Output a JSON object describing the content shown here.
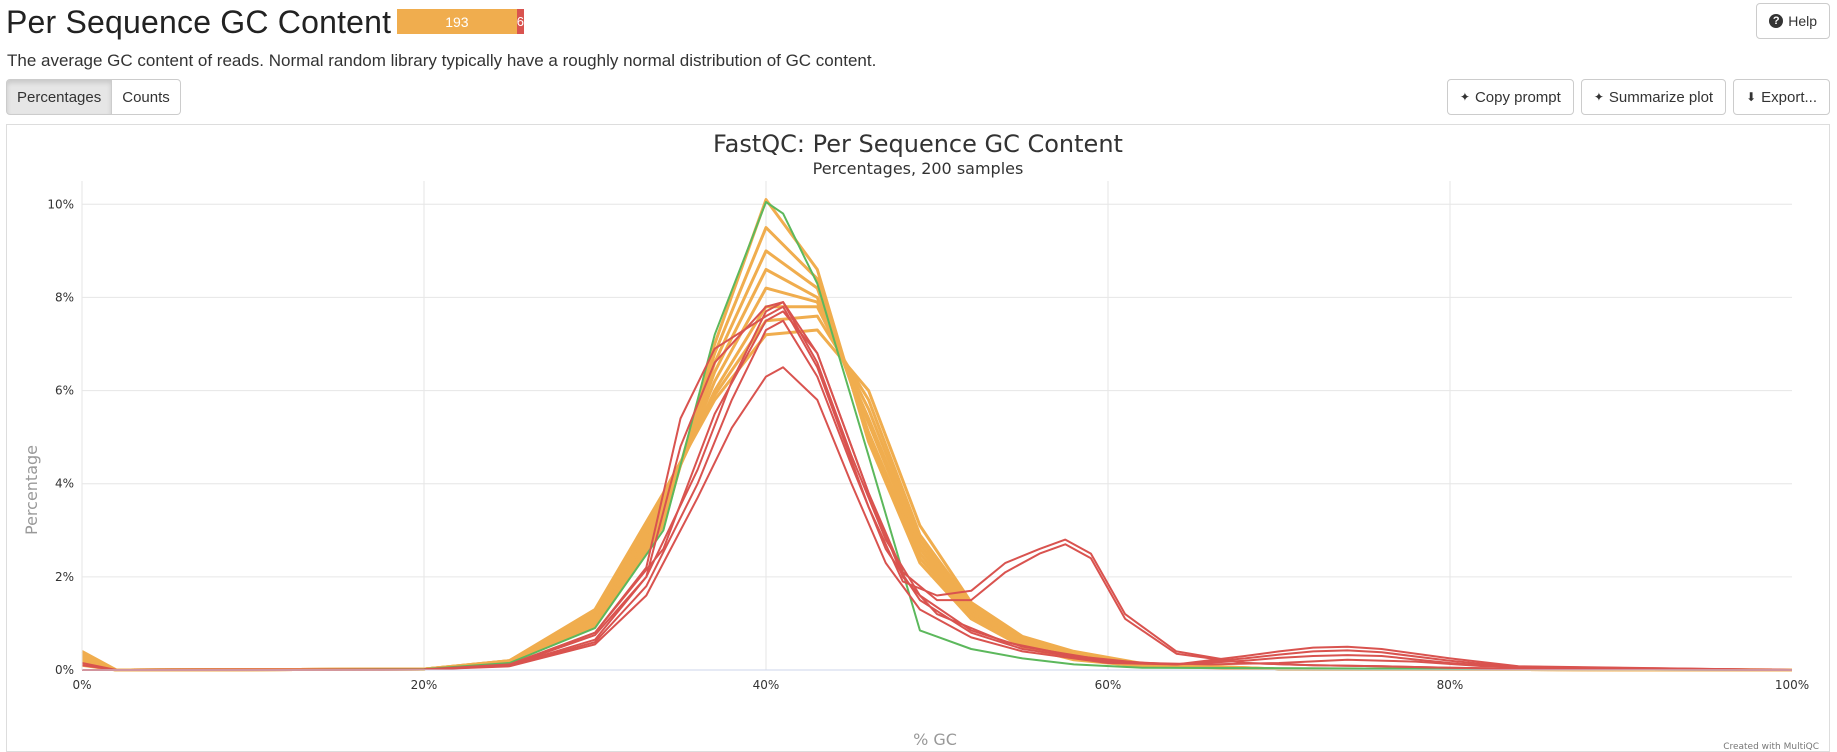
{
  "header": {
    "title": "Per Sequence GC Content",
    "status_warn": "193",
    "status_fail": "6",
    "help_label": "Help"
  },
  "description": "The average GC content of reads. Normal random library typically have a roughly normal distribution of GC content.",
  "toggles": {
    "percentages": "Percentages",
    "counts": "Counts"
  },
  "tools": {
    "copy_prompt": "Copy prompt",
    "summarize_plot": "Summarize plot",
    "export": "Export..."
  },
  "colors": {
    "warn": "#f0ad4e",
    "fail": "#d9534f",
    "pass": "#5cb85c"
  },
  "chart_data": {
    "type": "line",
    "title": "FastQC: Per Sequence GC Content",
    "subtitle": "Percentages, 200 samples",
    "xlabel": "% GC",
    "ylabel": "Percentage",
    "xlim": [
      0,
      100
    ],
    "ylim": [
      0,
      10.5
    ],
    "xticks": [
      "0%",
      "20%",
      "40%",
      "60%",
      "80%",
      "100%"
    ],
    "yticks": [
      "0%",
      "2%",
      "4%",
      "6%",
      "8%",
      "10%"
    ],
    "grid": true,
    "credit": "Created with MultiQC",
    "series": [
      {
        "status": "warn",
        "x": [
          0,
          2,
          20,
          25,
          30,
          34,
          37,
          40,
          43,
          46,
          49,
          52,
          55,
          58,
          62,
          70,
          100
        ],
        "y": [
          0.4,
          0,
          0.02,
          0.15,
          0.95,
          3.1,
          7.0,
          10.1,
          8.6,
          4.9,
          2.3,
          1.1,
          0.5,
          0.22,
          0.08,
          0.02,
          0
        ]
      },
      {
        "status": "warn",
        "x": [
          0,
          2,
          20,
          25,
          30,
          34,
          37,
          40,
          43,
          46,
          49,
          52,
          55,
          58,
          62,
          70,
          100
        ],
        "y": [
          0.35,
          0,
          0.02,
          0.16,
          1.0,
          3.2,
          6.8,
          9.5,
          8.4,
          5.0,
          2.4,
          1.15,
          0.55,
          0.25,
          0.09,
          0.02,
          0
        ]
      },
      {
        "status": "warn",
        "x": [
          0,
          2,
          20,
          25,
          30,
          34,
          37,
          40,
          43,
          46,
          49,
          52,
          55,
          58,
          62,
          70,
          100
        ],
        "y": [
          0.3,
          0,
          0.02,
          0.17,
          1.05,
          3.3,
          6.6,
          9.0,
          8.2,
          5.1,
          2.5,
          1.2,
          0.6,
          0.27,
          0.1,
          0.02,
          0
        ]
      },
      {
        "status": "warn",
        "x": [
          0,
          2,
          20,
          25,
          30,
          34,
          37,
          40,
          43,
          46,
          49,
          52,
          55,
          58,
          62,
          70,
          100
        ],
        "y": [
          0.25,
          0,
          0.02,
          0.18,
          1.1,
          3.4,
          6.4,
          8.6,
          8.0,
          5.3,
          2.6,
          1.25,
          0.62,
          0.3,
          0.1,
          0.02,
          0
        ]
      },
      {
        "status": "warn",
        "x": [
          0,
          2,
          20,
          25,
          30,
          34,
          37,
          40,
          43,
          46,
          49,
          52,
          55,
          58,
          62,
          70,
          100
        ],
        "y": [
          0.2,
          0,
          0.02,
          0.19,
          1.15,
          3.5,
          6.2,
          8.2,
          7.9,
          5.4,
          2.7,
          1.3,
          0.65,
          0.32,
          0.11,
          0.02,
          0
        ]
      },
      {
        "status": "warn",
        "x": [
          0,
          2,
          20,
          25,
          30,
          34,
          37,
          40,
          43,
          46,
          49,
          52,
          55,
          58,
          62,
          70,
          100
        ],
        "y": [
          0.2,
          0,
          0.02,
          0.2,
          1.2,
          3.6,
          6.0,
          7.8,
          7.8,
          5.6,
          2.8,
          1.35,
          0.68,
          0.35,
          0.12,
          0.02,
          0
        ]
      },
      {
        "status": "warn",
        "x": [
          0,
          2,
          20,
          25,
          30,
          34,
          37,
          40,
          43,
          46,
          49,
          52,
          55,
          58,
          62,
          70,
          100
        ],
        "y": [
          0.15,
          0,
          0.02,
          0.2,
          1.25,
          3.7,
          5.9,
          7.5,
          7.6,
          5.8,
          2.9,
          1.4,
          0.7,
          0.38,
          0.13,
          0.02,
          0
        ]
      },
      {
        "status": "warn",
        "x": [
          0,
          2,
          20,
          25,
          30,
          34,
          37,
          40,
          43,
          46,
          49,
          52,
          55,
          58,
          62,
          70,
          100
        ],
        "y": [
          0.1,
          0,
          0.02,
          0.2,
          1.3,
          3.8,
          5.8,
          7.2,
          7.3,
          6.0,
          3.1,
          1.45,
          0.72,
          0.4,
          0.14,
          0.02,
          0
        ]
      },
      {
        "status": "pass",
        "x": [
          0,
          2,
          20,
          25,
          30,
          34,
          37,
          40,
          41,
          43,
          46,
          49,
          52,
          55,
          58,
          62,
          100
        ],
        "y": [
          0,
          0,
          0.02,
          0.15,
          0.9,
          3.0,
          7.2,
          10.05,
          9.8,
          8.3,
          4.6,
          0.85,
          0.45,
          0.25,
          0.12,
          0.05,
          0
        ]
      },
      {
        "status": "fail",
        "x": [
          0,
          2,
          20,
          25,
          30,
          33,
          35,
          37,
          40,
          41,
          43,
          46,
          48,
          50,
          52,
          54,
          56,
          57.5,
          59,
          61,
          64,
          68,
          72,
          76,
          80,
          85,
          100
        ],
        "y": [
          0.15,
          0,
          0.01,
          0.1,
          0.8,
          2.2,
          5.4,
          6.9,
          7.6,
          7.8,
          6.5,
          3.5,
          1.9,
          1.6,
          1.7,
          2.3,
          2.6,
          2.8,
          2.5,
          1.2,
          0.4,
          0.15,
          0.1,
          0.08,
          0.05,
          0.02,
          0
        ]
      },
      {
        "status": "fail",
        "x": [
          0,
          2,
          20,
          25,
          30,
          33,
          35,
          37,
          40,
          41,
          43,
          46,
          48,
          50,
          52,
          54,
          56,
          57.5,
          59,
          61,
          64,
          68,
          72,
          76,
          80,
          85,
          100
        ],
        "y": [
          0.1,
          0,
          0.01,
          0.1,
          0.75,
          2.0,
          4.8,
          6.6,
          7.8,
          7.9,
          6.8,
          3.8,
          2.1,
          1.5,
          1.5,
          2.1,
          2.5,
          2.7,
          2.4,
          1.1,
          0.35,
          0.15,
          0.1,
          0.08,
          0.05,
          0.02,
          0
        ]
      },
      {
        "status": "fail",
        "x": [
          0,
          2,
          20,
          25,
          30,
          33,
          36,
          38,
          40,
          41,
          43,
          45,
          47,
          49,
          52,
          55,
          60,
          64,
          68,
          70,
          72,
          74,
          76,
          80,
          84,
          100
        ],
        "y": [
          0,
          0,
          0.01,
          0.08,
          0.55,
          1.6,
          3.7,
          5.2,
          6.3,
          6.5,
          5.8,
          4.0,
          2.3,
          1.3,
          0.7,
          0.4,
          0.15,
          0.12,
          0.3,
          0.4,
          0.48,
          0.5,
          0.45,
          0.25,
          0.08,
          0
        ]
      },
      {
        "status": "fail",
        "x": [
          0,
          2,
          20,
          25,
          30,
          33,
          36,
          38,
          40,
          41,
          43,
          45,
          47,
          49,
          52,
          55,
          60,
          64,
          68,
          70,
          72,
          74,
          76,
          80,
          84,
          100
        ],
        "y": [
          0,
          0,
          0.01,
          0.09,
          0.6,
          1.8,
          4.0,
          5.8,
          7.3,
          7.5,
          6.3,
          4.4,
          2.6,
          1.5,
          0.8,
          0.45,
          0.18,
          0.12,
          0.25,
          0.33,
          0.4,
          0.42,
          0.38,
          0.2,
          0.06,
          0
        ]
      },
      {
        "status": "fail",
        "x": [
          0,
          2,
          20,
          25,
          30,
          33,
          36,
          38,
          40,
          41,
          43,
          45,
          47,
          49,
          52,
          55,
          60,
          64,
          68,
          70,
          72,
          74,
          76,
          80,
          84,
          100
        ],
        "y": [
          0,
          0,
          0.01,
          0.1,
          0.65,
          2.0,
          4.3,
          6.2,
          7.7,
          7.9,
          6.6,
          4.6,
          2.8,
          1.6,
          0.85,
          0.5,
          0.2,
          0.12,
          0.2,
          0.26,
          0.3,
          0.32,
          0.3,
          0.15,
          0.05,
          0
        ]
      },
      {
        "status": "fail",
        "x": [
          0,
          2,
          20,
          25,
          30,
          34,
          37,
          40,
          41,
          43,
          46,
          48,
          50,
          54,
          58,
          62,
          66,
          70,
          74,
          78,
          82,
          100
        ],
        "y": [
          0,
          0,
          0.01,
          0.12,
          0.8,
          2.6,
          5.5,
          7.5,
          7.7,
          6.8,
          3.8,
          2.0,
          1.2,
          0.6,
          0.3,
          0.15,
          0.12,
          0.15,
          0.22,
          0.18,
          0.08,
          0
        ]
      }
    ]
  }
}
